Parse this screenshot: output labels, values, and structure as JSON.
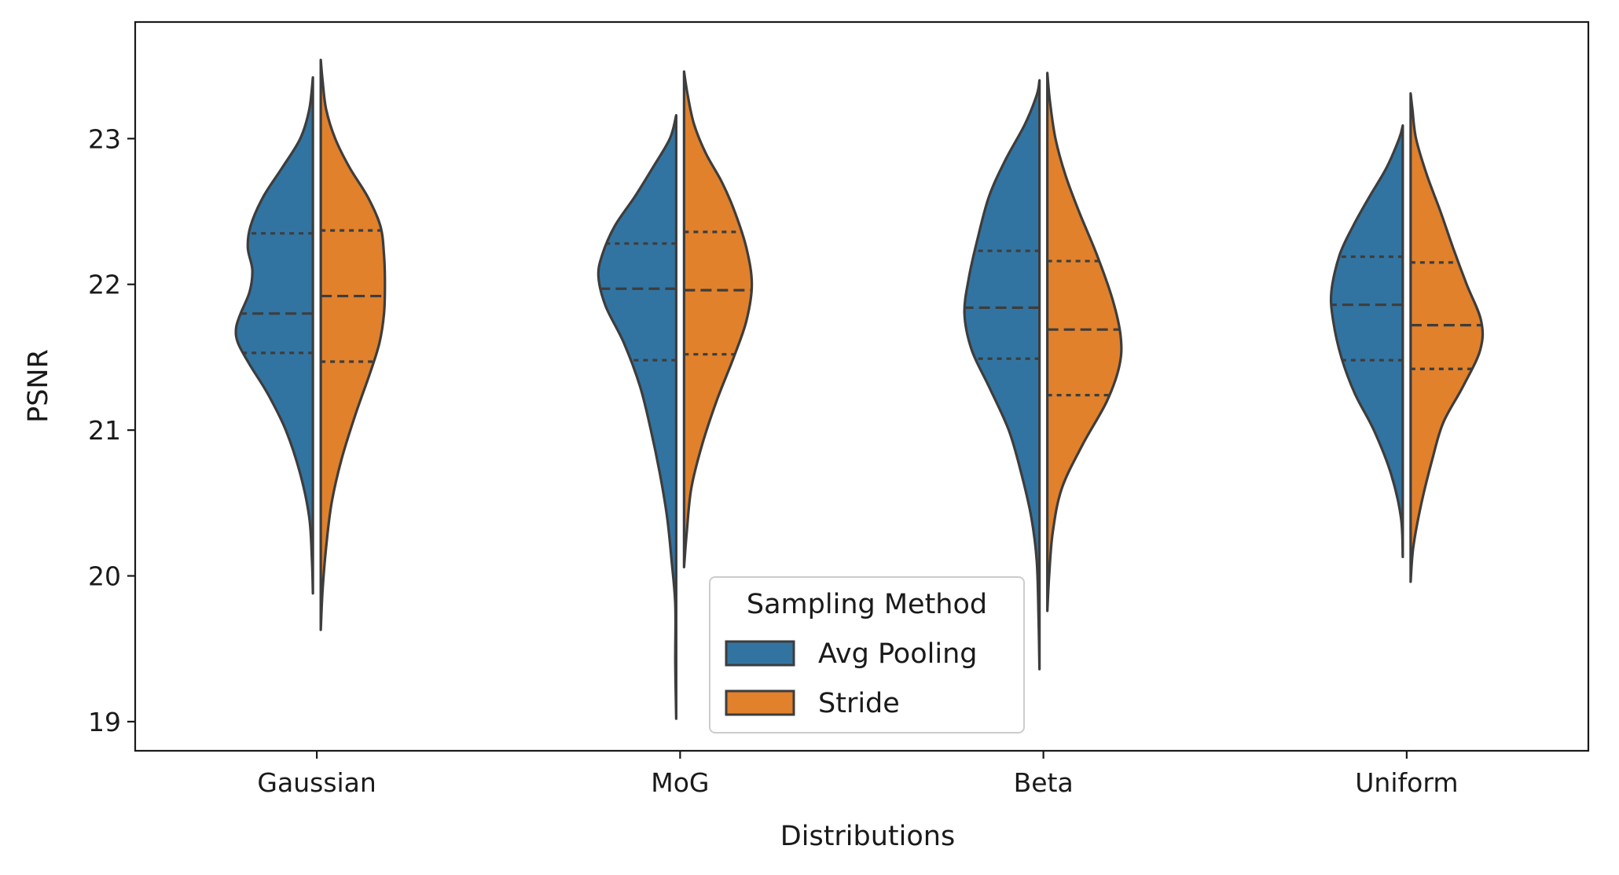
{
  "chart_data": {
    "type": "violin",
    "split": true,
    "xlabel": "Distributions",
    "ylabel": "PSNR",
    "ylim": [
      18.8,
      23.8
    ],
    "yticks": [
      19,
      20,
      21,
      22,
      23
    ],
    "categories": [
      "Gaussian",
      "MoG",
      "Beta",
      "Uniform"
    ],
    "legend": {
      "title": "Sampling Method",
      "placement": "lower-center",
      "entries": [
        "Avg Pooling",
        "Stride"
      ]
    },
    "colors": {
      "Avg Pooling": "#3274a1",
      "Stride": "#e1812c",
      "edge": "#3d3d3d"
    },
    "series": [
      {
        "name": "Avg Pooling",
        "side": "left",
        "violins": [
          {
            "category": "Gaussian",
            "min": 19.88,
            "max": 23.42,
            "q1": 21.53,
            "median": 21.8,
            "q3": 22.35,
            "profile": [
              [
                19.88,
                0.0
              ],
              [
                20.1,
                0.01
              ],
              [
                20.4,
                0.04
              ],
              [
                20.7,
                0.14
              ],
              [
                21.0,
                0.3
              ],
              [
                21.25,
                0.5
              ],
              [
                21.45,
                0.7
              ],
              [
                21.6,
                0.83
              ],
              [
                21.7,
                0.85
              ],
              [
                21.8,
                0.8
              ],
              [
                21.95,
                0.7
              ],
              [
                22.1,
                0.67
              ],
              [
                22.25,
                0.72
              ],
              [
                22.4,
                0.69
              ],
              [
                22.6,
                0.55
              ],
              [
                22.8,
                0.34
              ],
              [
                23.0,
                0.14
              ],
              [
                23.2,
                0.04
              ],
              [
                23.42,
                0.0
              ]
            ]
          },
          {
            "category": "MoG",
            "min": 19.02,
            "max": 23.16,
            "q1": 21.48,
            "median": 21.97,
            "q3": 22.28,
            "profile": [
              [
                19.02,
                0.0
              ],
              [
                19.4,
                0.01
              ],
              [
                19.8,
                0.01
              ],
              [
                20.1,
                0.05
              ],
              [
                20.4,
                0.1
              ],
              [
                20.7,
                0.18
              ],
              [
                21.0,
                0.28
              ],
              [
                21.3,
                0.4
              ],
              [
                21.6,
                0.58
              ],
              [
                21.85,
                0.78
              ],
              [
                22.05,
                0.86
              ],
              [
                22.2,
                0.82
              ],
              [
                22.4,
                0.68
              ],
              [
                22.6,
                0.46
              ],
              [
                22.8,
                0.26
              ],
              [
                23.0,
                0.07
              ],
              [
                23.16,
                0.0
              ]
            ]
          },
          {
            "category": "Beta",
            "min": 19.36,
            "max": 23.4,
            "q1": 21.49,
            "median": 21.84,
            "q3": 22.23,
            "profile": [
              [
                19.36,
                0.0
              ],
              [
                19.7,
                0.01
              ],
              [
                20.1,
                0.03
              ],
              [
                20.4,
                0.09
              ],
              [
                20.7,
                0.2
              ],
              [
                21.0,
                0.34
              ],
              [
                21.3,
                0.56
              ],
              [
                21.55,
                0.75
              ],
              [
                21.8,
                0.83
              ],
              [
                22.05,
                0.78
              ],
              [
                22.3,
                0.69
              ],
              [
                22.6,
                0.56
              ],
              [
                22.85,
                0.38
              ],
              [
                23.1,
                0.16
              ],
              [
                23.3,
                0.03
              ],
              [
                23.4,
                0.0
              ]
            ]
          },
          {
            "category": "Uniform",
            "min": 20.13,
            "max": 23.09,
            "q1": 21.48,
            "median": 21.86,
            "q3": 22.19,
            "profile": [
              [
                20.13,
                0.0
              ],
              [
                20.4,
                0.02
              ],
              [
                20.7,
                0.13
              ],
              [
                21.0,
                0.32
              ],
              [
                21.25,
                0.53
              ],
              [
                21.5,
                0.68
              ],
              [
                21.75,
                0.77
              ],
              [
                21.95,
                0.79
              ],
              [
                22.2,
                0.7
              ],
              [
                22.4,
                0.55
              ],
              [
                22.6,
                0.37
              ],
              [
                22.8,
                0.18
              ],
              [
                23.0,
                0.04
              ],
              [
                23.09,
                0.0
              ]
            ]
          }
        ]
      },
      {
        "name": "Stride",
        "side": "right",
        "violins": [
          {
            "category": "Gaussian",
            "min": 19.63,
            "max": 23.54,
            "q1": 21.47,
            "median": 21.92,
            "q3": 22.37,
            "profile": [
              [
                19.63,
                0.0
              ],
              [
                19.9,
                0.02
              ],
              [
                20.2,
                0.06
              ],
              [
                20.5,
                0.12
              ],
              [
                20.8,
                0.23
              ],
              [
                21.1,
                0.38
              ],
              [
                21.4,
                0.55
              ],
              [
                21.6,
                0.65
              ],
              [
                21.8,
                0.7
              ],
              [
                22.0,
                0.71
              ],
              [
                22.2,
                0.7
              ],
              [
                22.4,
                0.66
              ],
              [
                22.6,
                0.52
              ],
              [
                22.8,
                0.32
              ],
              [
                23.0,
                0.16
              ],
              [
                23.2,
                0.06
              ],
              [
                23.4,
                0.02
              ],
              [
                23.54,
                0.0
              ]
            ]
          },
          {
            "category": "MoG",
            "min": 20.06,
            "max": 23.46,
            "q1": 21.52,
            "median": 21.96,
            "q3": 22.36,
            "profile": [
              [
                20.06,
                0.0
              ],
              [
                20.3,
                0.03
              ],
              [
                20.6,
                0.08
              ],
              [
                20.9,
                0.2
              ],
              [
                21.2,
                0.36
              ],
              [
                21.5,
                0.55
              ],
              [
                21.75,
                0.69
              ],
              [
                22.0,
                0.75
              ],
              [
                22.25,
                0.69
              ],
              [
                22.5,
                0.56
              ],
              [
                22.7,
                0.42
              ],
              [
                22.9,
                0.24
              ],
              [
                23.1,
                0.11
              ],
              [
                23.3,
                0.04
              ],
              [
                23.46,
                0.0
              ]
            ]
          },
          {
            "category": "Beta",
            "min": 19.76,
            "max": 23.45,
            "q1": 21.24,
            "median": 21.69,
            "q3": 22.16,
            "profile": [
              [
                19.76,
                0.0
              ],
              [
                20.0,
                0.02
              ],
              [
                20.3,
                0.06
              ],
              [
                20.6,
                0.16
              ],
              [
                20.9,
                0.39
              ],
              [
                21.2,
                0.66
              ],
              [
                21.45,
                0.8
              ],
              [
                21.65,
                0.81
              ],
              [
                21.9,
                0.72
              ],
              [
                22.2,
                0.55
              ],
              [
                22.5,
                0.35
              ],
              [
                22.75,
                0.2
              ],
              [
                23.0,
                0.09
              ],
              [
                23.25,
                0.03
              ],
              [
                23.45,
                0.0
              ]
            ]
          },
          {
            "category": "Uniform",
            "min": 19.96,
            "max": 23.31,
            "q1": 21.42,
            "median": 21.72,
            "q3": 22.15,
            "profile": [
              [
                19.96,
                0.0
              ],
              [
                20.2,
                0.03
              ],
              [
                20.5,
                0.12
              ],
              [
                20.8,
                0.24
              ],
              [
                21.05,
                0.36
              ],
              [
                21.3,
                0.58
              ],
              [
                21.55,
                0.77
              ],
              [
                21.75,
                0.78
              ],
              [
                22.0,
                0.62
              ],
              [
                22.25,
                0.47
              ],
              [
                22.5,
                0.33
              ],
              [
                22.75,
                0.18
              ],
              [
                23.0,
                0.06
              ],
              [
                23.2,
                0.02
              ],
              [
                23.31,
                0.0
              ]
            ]
          }
        ]
      }
    ]
  }
}
